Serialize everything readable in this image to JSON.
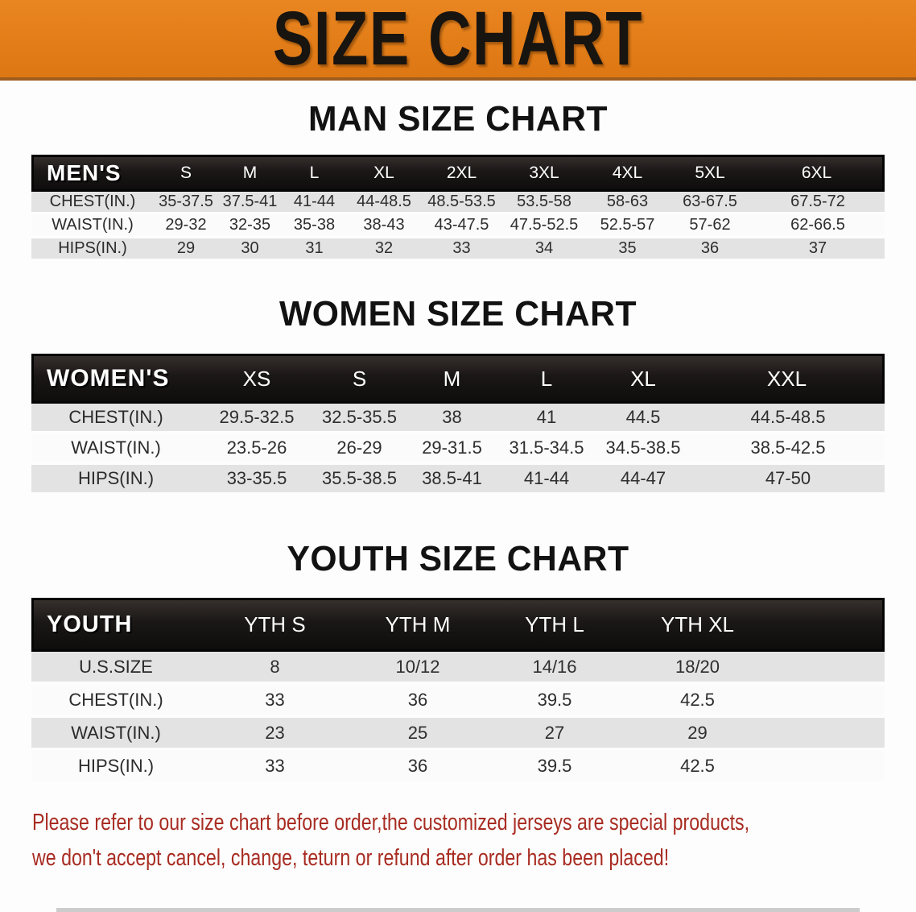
{
  "banner": {
    "title": "SIZE CHART"
  },
  "sections": [
    {
      "css": "mens",
      "title": "MAN SIZE CHART",
      "header_label": "MEN'S",
      "sizes": [
        "S",
        "M",
        "L",
        "XL",
        "2XL",
        "3XL",
        "4XL",
        "5XL",
        "6XL"
      ],
      "rows": [
        {
          "label": "CHEST(IN.)",
          "values": [
            "35-37.5",
            "37.5-41",
            "41-44",
            "44-48.5",
            "48.5-53.5",
            "53.5-58",
            "58-63",
            "63-67.5",
            "67.5-72"
          ]
        },
        {
          "label": "WAIST(IN.)",
          "values": [
            "29-32",
            "32-35",
            "35-38",
            "38-43",
            "43-47.5",
            "47.5-52.5",
            "52.5-57",
            "57-62",
            "62-66.5"
          ]
        },
        {
          "label": "HIPS(IN.)",
          "values": [
            "29",
            "30",
            "31",
            "32",
            "33",
            "34",
            "35",
            "36",
            "37"
          ]
        }
      ]
    },
    {
      "css": "womens",
      "title": "WOMEN SIZE CHART",
      "header_label": "WOMEN'S",
      "sizes": [
        "XS",
        "S",
        "M",
        "L",
        "XL",
        "XXL"
      ],
      "rows": [
        {
          "label": "CHEST(IN.)",
          "values": [
            "29.5-32.5",
            "32.5-35.5",
            "38",
            "41",
            "44.5",
            "44.5-48.5"
          ]
        },
        {
          "label": "WAIST(IN.)",
          "values": [
            "23.5-26",
            "26-29",
            "29-31.5",
            "31.5-34.5",
            "34.5-38.5",
            "38.5-42.5"
          ]
        },
        {
          "label": "HIPS(IN.)",
          "values": [
            "33-35.5",
            "35.5-38.5",
            "38.5-41",
            "41-44",
            "44-47",
            "47-50"
          ]
        }
      ]
    },
    {
      "css": "youth",
      "title": "YOUTH SIZE CHART",
      "header_label": "YOUTH",
      "sizes": [
        "YTH S",
        "YTH M",
        "YTH L",
        "YTH XL"
      ],
      "rows": [
        {
          "label": "U.S.SIZE",
          "values": [
            "8",
            "10/12",
            "14/16",
            "18/20"
          ]
        },
        {
          "label": "CHEST(IN.)",
          "values": [
            "33",
            "36",
            "39.5",
            "42.5"
          ]
        },
        {
          "label": "WAIST(IN.)",
          "values": [
            "23",
            "25",
            "27",
            "29"
          ]
        },
        {
          "label": "HIPS(IN.)",
          "values": [
            "33",
            "36",
            "39.5",
            "42.5"
          ]
        }
      ]
    }
  ],
  "note": {
    "line1": "Please refer to our size chart before order,the customized jerseys are special products,",
    "line2": "we don't accept cancel, change, teturn or refund after order has been placed!"
  },
  "colors": {
    "banner_orange": "#e27d18",
    "banner_border": "#9e5c1e",
    "header_bar_black": "#1b1717",
    "row_gray": "#e3e3e3",
    "note_red": "#a82c22"
  }
}
